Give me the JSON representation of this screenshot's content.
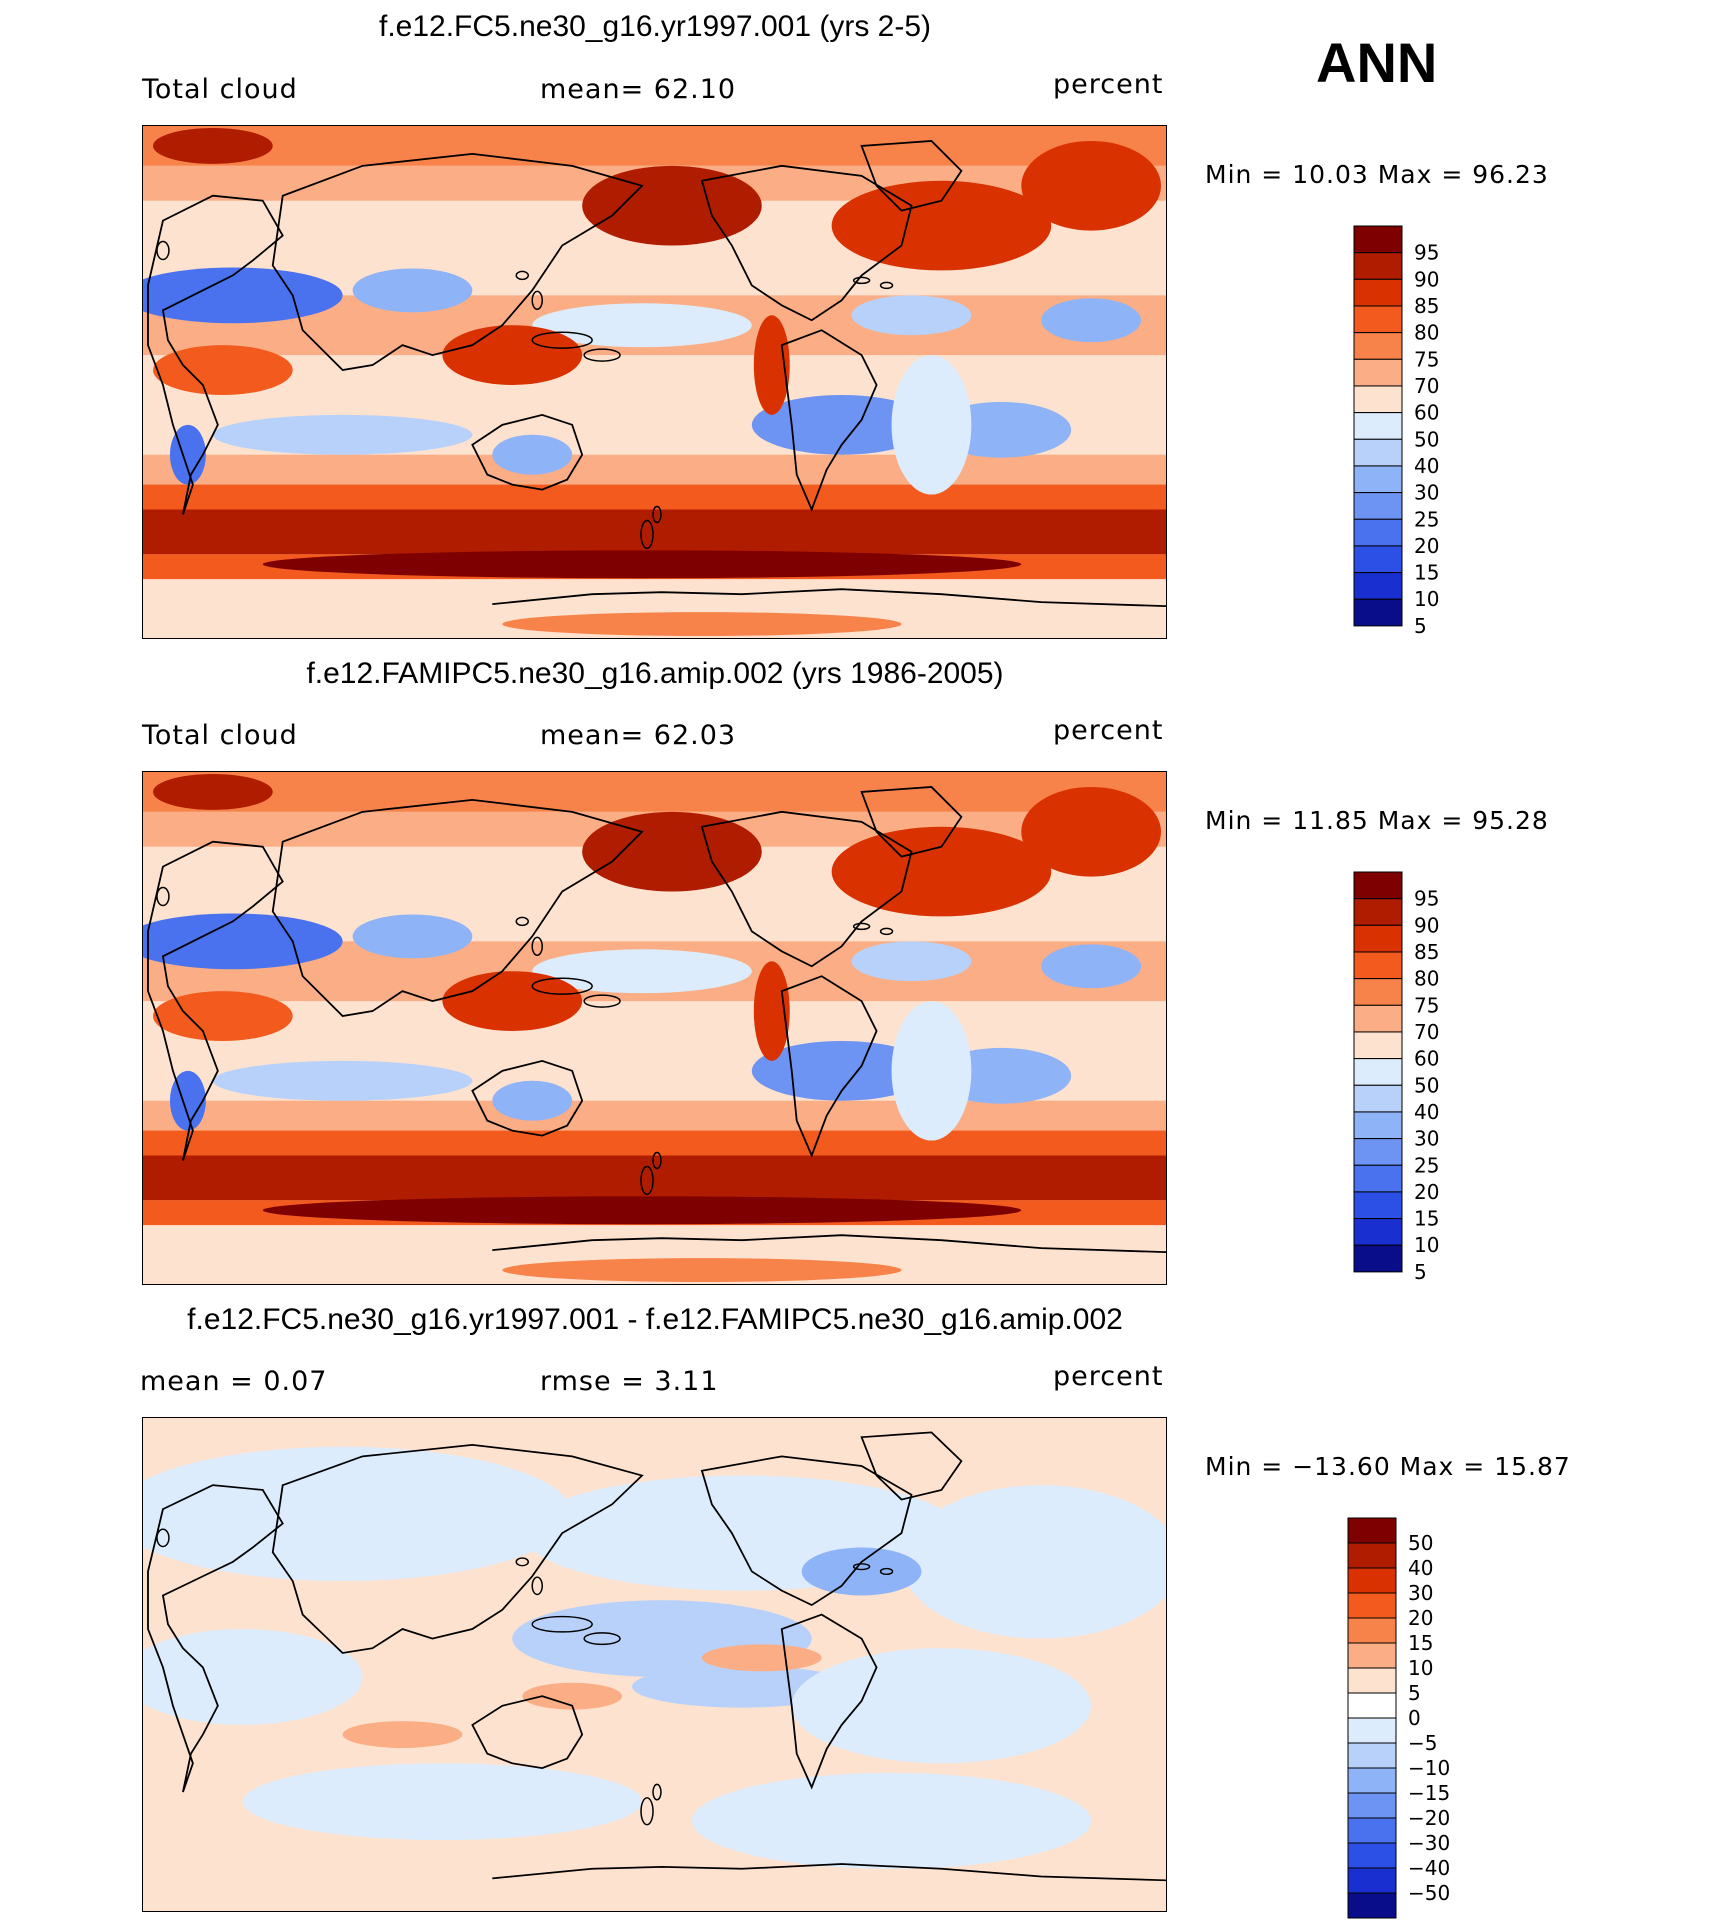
{
  "season": "ANN",
  "panels": [
    {
      "title": "f.e12.FC5.ne30_g16.yr1997.001 (yrs 2-5)",
      "left_label": "Total cloud",
      "center_label": "mean=   62.10",
      "right_label": "percent",
      "min_max": "Min  =   10.03  Max  =   96.23",
      "colorbar_labels": [
        "95",
        "90",
        "85",
        "80",
        "75",
        "70",
        "60",
        "50",
        "40",
        "30",
        "25",
        "20",
        "15",
        "10",
        "5"
      ],
      "colorbar_colors": [
        "#7f0000",
        "#b01c00",
        "#d93200",
        "#f25a1e",
        "#f7834a",
        "#fbae85",
        "#fde2cf",
        "#dcecfc",
        "#b7d1fb",
        "#8fb3f7",
        "#6d94f3",
        "#4a72ee",
        "#2c4fe6",
        "#1a2fd0",
        "#0a0d8a"
      ],
      "map_palette": "levels"
    },
    {
      "title": "f.e12.FAMIPC5.ne30_g16.amip.002 (yrs 1986-2005)",
      "left_label": "Total cloud",
      "center_label": "mean=   62.03",
      "right_label": "percent",
      "min_max": "Min  =   11.85  Max  =   95.28",
      "colorbar_labels": [
        "95",
        "90",
        "85",
        "80",
        "75",
        "70",
        "60",
        "50",
        "40",
        "30",
        "25",
        "20",
        "15",
        "10",
        "5"
      ],
      "colorbar_colors": [
        "#7f0000",
        "#b01c00",
        "#d93200",
        "#f25a1e",
        "#f7834a",
        "#fbae85",
        "#fde2cf",
        "#dcecfc",
        "#b7d1fb",
        "#8fb3f7",
        "#6d94f3",
        "#4a72ee",
        "#2c4fe6",
        "#1a2fd0",
        "#0a0d8a"
      ],
      "map_palette": "levels"
    },
    {
      "title": "f.e12.FC5.ne30_g16.yr1997.001 - f.e12.FAMIPC5.ne30_g16.amip.002",
      "left_label": "mean  =     0.07",
      "center_label": "rmse  =     3.11",
      "right_label": "percent",
      "min_max": "Min  = −13.60  Max  =    15.87",
      "colorbar_labels": [
        "50",
        "40",
        "30",
        "20",
        "15",
        "10",
        "5",
        "0",
        "−5",
        "−10",
        "−15",
        "−20",
        "−30",
        "−40",
        "−50"
      ],
      "colorbar_colors": [
        "#7f0000",
        "#b01c00",
        "#d93200",
        "#f25a1e",
        "#f7834a",
        "#fbae85",
        "#fde2cf",
        "#ffffff",
        "#dcecfc",
        "#b7d1fb",
        "#8fb3f7",
        "#6d94f3",
        "#4a72ee",
        "#2c4fe6",
        "#1a2fd0",
        "#0a0d8a"
      ],
      "map_palette": "difference"
    }
  ]
}
